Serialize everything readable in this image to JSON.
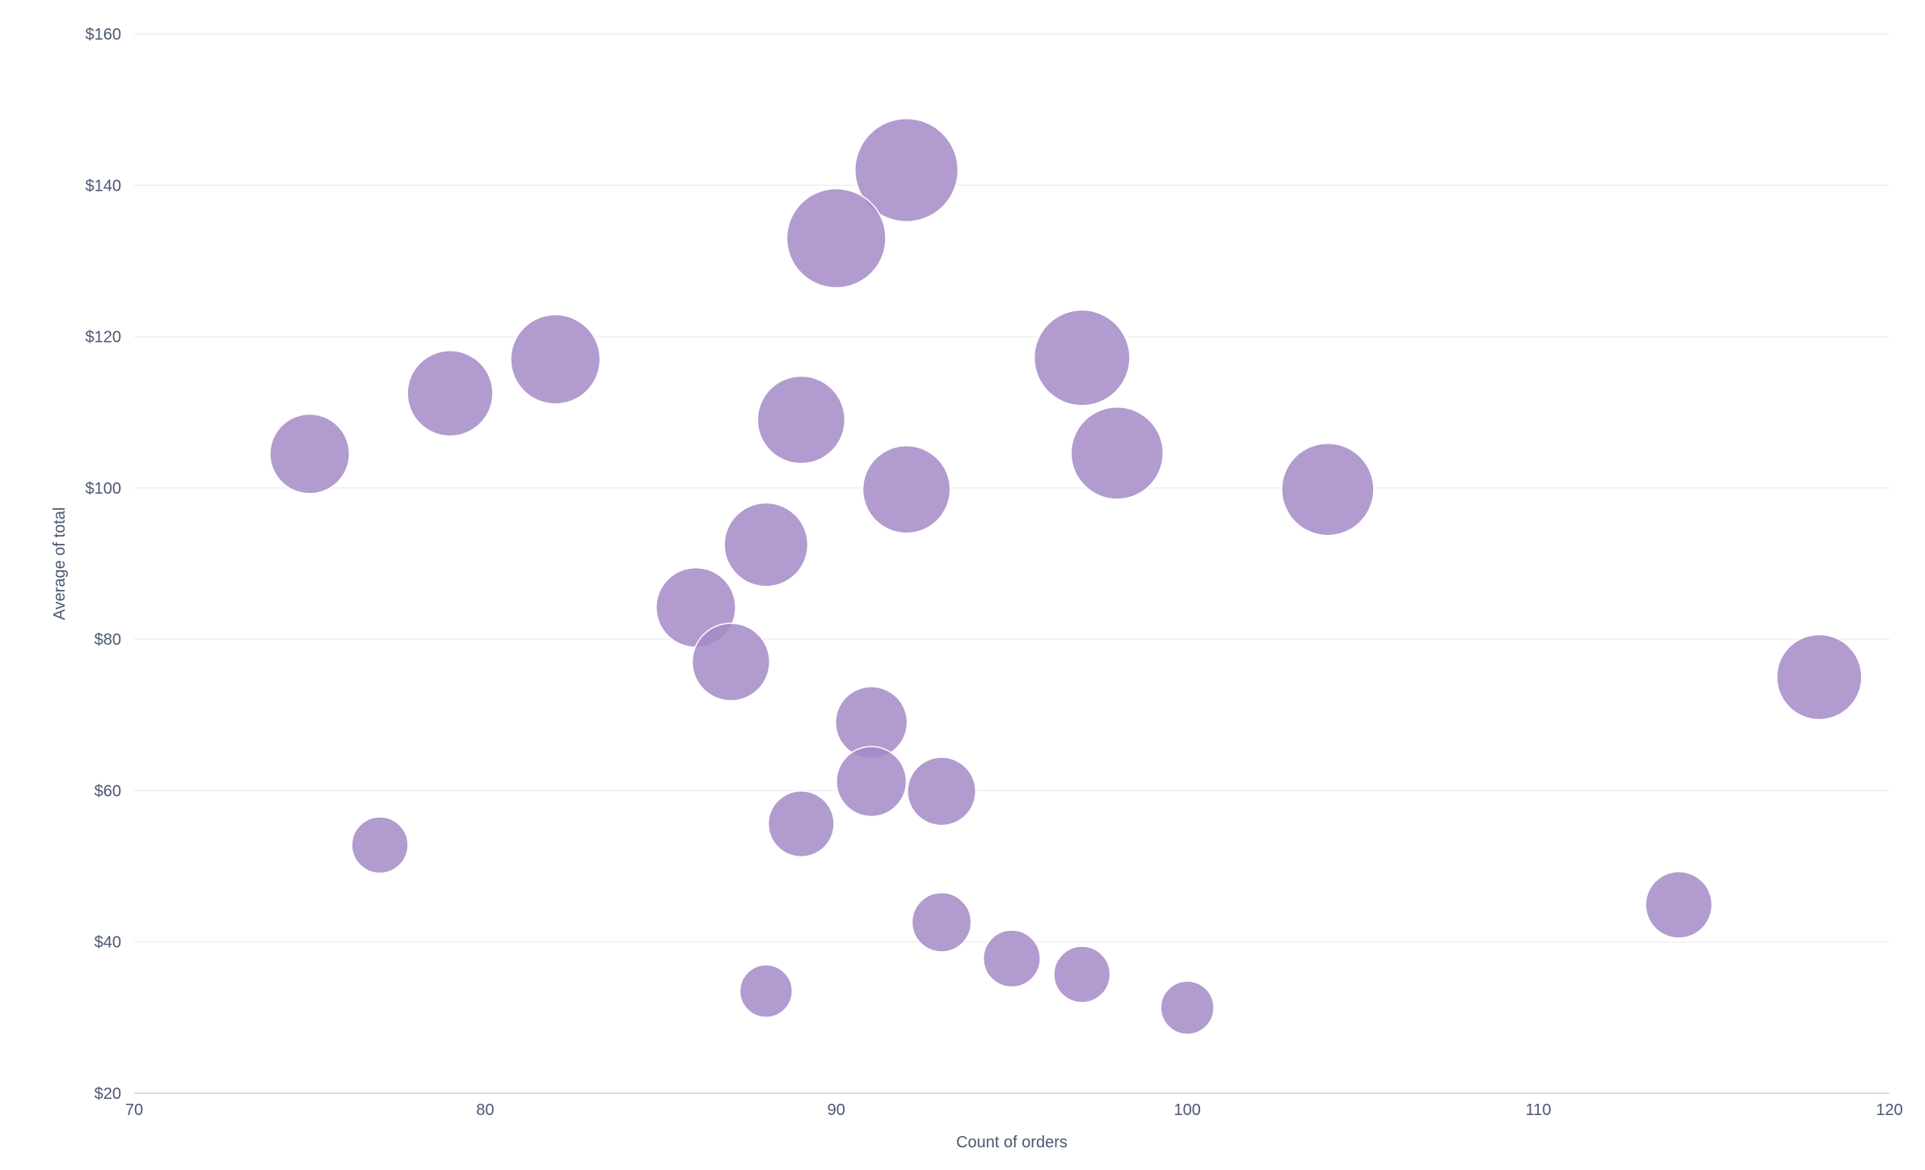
{
  "chart_data": {
    "type": "scatter",
    "xlabel": "Count of orders",
    "ylabel": "Average of total",
    "xlim": [
      70,
      120
    ],
    "ylim": [
      20,
      160
    ],
    "x_ticks": [
      "70",
      "80",
      "90",
      "100",
      "110",
      "120"
    ],
    "y_ticks": [
      "$20",
      "$40",
      "$60",
      "$80",
      "$100",
      "$120",
      "$140",
      "$160"
    ],
    "grid": true,
    "legend": "none",
    "bubble_color": "#a48ac6",
    "points": [
      {
        "x": 75,
        "y": 104.5,
        "size": 7600
      },
      {
        "x": 77,
        "y": 52.8,
        "size": 3800
      },
      {
        "x": 79,
        "y": 112.5,
        "size": 8800
      },
      {
        "x": 82,
        "y": 117,
        "size": 9600
      },
      {
        "x": 86,
        "y": 84.2,
        "size": 7600
      },
      {
        "x": 87,
        "y": 77,
        "size": 7200
      },
      {
        "x": 88,
        "y": 92.5,
        "size": 8400
      },
      {
        "x": 88,
        "y": 33.5,
        "size": 3300
      },
      {
        "x": 89,
        "y": 109,
        "size": 9200
      },
      {
        "x": 89,
        "y": 55.6,
        "size": 5200
      },
      {
        "x": 90,
        "y": 133,
        "size": 11800
      },
      {
        "x": 91,
        "y": 69,
        "size": 6200
      },
      {
        "x": 91,
        "y": 61.2,
        "size": 5900
      },
      {
        "x": 92,
        "y": 142,
        "size": 12800
      },
      {
        "x": 92,
        "y": 99.8,
        "size": 9200
      },
      {
        "x": 93,
        "y": 59.9,
        "size": 5600
      },
      {
        "x": 93,
        "y": 42.6,
        "size": 4200
      },
      {
        "x": 95,
        "y": 37.8,
        "size": 3900
      },
      {
        "x": 97,
        "y": 117.2,
        "size": 11000
      },
      {
        "x": 97,
        "y": 35.7,
        "size": 3800
      },
      {
        "x": 98,
        "y": 104.6,
        "size": 10200
      },
      {
        "x": 100,
        "y": 31.3,
        "size": 3400
      },
      {
        "x": 104,
        "y": 99.8,
        "size": 10200
      },
      {
        "x": 114,
        "y": 44.9,
        "size": 5300
      },
      {
        "x": 118,
        "y": 75,
        "size": 8700
      }
    ]
  }
}
